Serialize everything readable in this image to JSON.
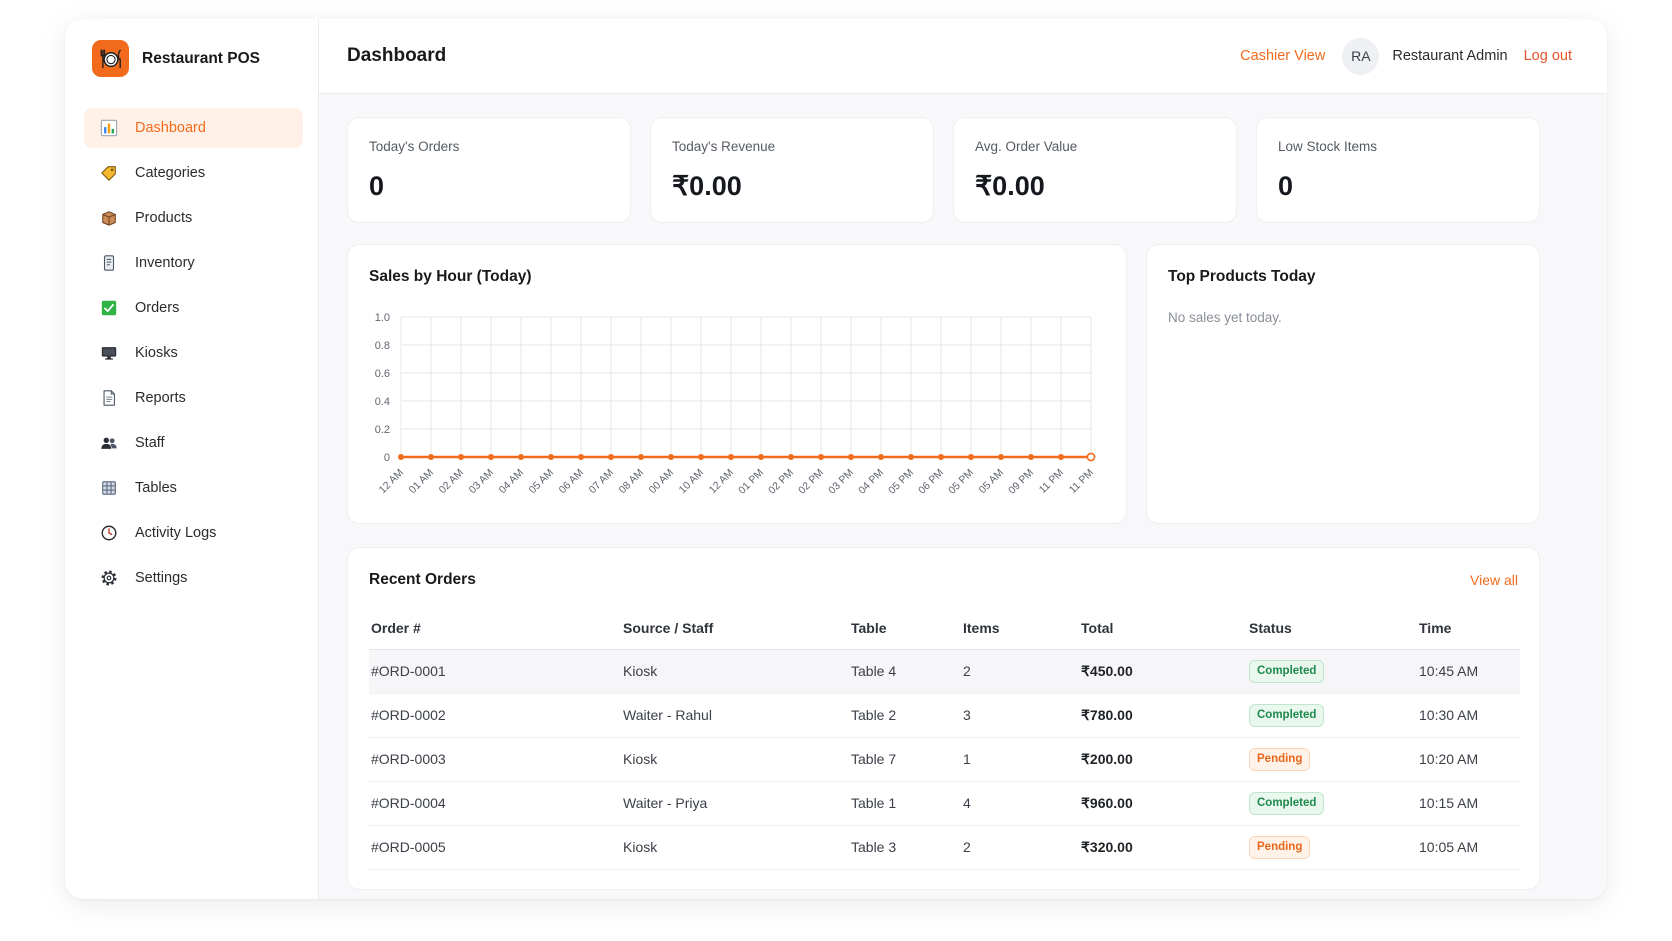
{
  "colors": {
    "accent": "#f26b1d",
    "logout": "#e5532d",
    "completed": "#1e8a4c",
    "pending": "#e8661a"
  },
  "app": {
    "name": "Restaurant POS",
    "logo_icon": "restaurant-logo-icon"
  },
  "sidebar": {
    "items": [
      {
        "label": "Dashboard",
        "icon": "bar-chart-icon",
        "active": true
      },
      {
        "label": "Categories",
        "icon": "tag-icon"
      },
      {
        "label": "Products",
        "icon": "box-icon"
      },
      {
        "label": "Inventory",
        "icon": "clipboard-icon"
      },
      {
        "label": "Orders",
        "icon": "check-box-icon"
      },
      {
        "label": "Kiosks",
        "icon": "monitor-icon"
      },
      {
        "label": "Reports",
        "icon": "document-icon"
      },
      {
        "label": "Staff",
        "icon": "people-icon"
      },
      {
        "label": "Tables",
        "icon": "table-grid-icon"
      },
      {
        "label": "Activity Logs",
        "icon": "clock-icon"
      },
      {
        "label": "Settings",
        "icon": "gear-icon"
      }
    ]
  },
  "header": {
    "title": "Dashboard",
    "cashier_view": "Cashier View",
    "avatar_initials": "RA",
    "user_name": "Restaurant Admin",
    "logout": "Log out"
  },
  "stats": [
    {
      "label": "Today's Orders",
      "value": "0"
    },
    {
      "label": "Today's Revenue",
      "value": "₹0.00"
    },
    {
      "label": "Avg. Order Value",
      "value": "₹0.00"
    },
    {
      "label": "Low Stock Items",
      "value": "0"
    }
  ],
  "chart_data": {
    "type": "line",
    "title": "Sales by Hour (Today)",
    "categories": [
      "12 AM",
      "01 AM",
      "02 AM",
      "03 AM",
      "04 AM",
      "05 AM",
      "06 AM",
      "07 AM",
      "08 AM",
      "00 AM",
      "10 AM",
      "12 AM",
      "01 PM",
      "02 PM",
      "02 PM",
      "03 PM",
      "04 PM",
      "05 PM",
      "06 PM",
      "05 PM",
      "05 AM",
      "09 PM",
      "11 PM",
      "11 PM"
    ],
    "series": [
      {
        "values": [
          0,
          0,
          0,
          0,
          0,
          0,
          0,
          0,
          0,
          0,
          0,
          0,
          0,
          0,
          0,
          0,
          0,
          0,
          0,
          0,
          0,
          0,
          0,
          0
        ],
        "color": "#f26b1d"
      }
    ],
    "ylim": [
      0,
      1
    ],
    "yticks": [
      0,
      0.2,
      0.4,
      0.6,
      0.8,
      1.0
    ],
    "ytick_labels": [
      "0",
      "0.2",
      "0.4",
      "0.6",
      "0.8",
      "1.0"
    ],
    "xlabel": "",
    "ylabel": "",
    "grid": true,
    "legend": "none"
  },
  "top_products": {
    "title": "Top Products Today",
    "empty_message": "No sales yet today."
  },
  "recent_orders": {
    "title": "Recent Orders",
    "view_all": "View all",
    "columns": [
      "Order #",
      "Source / Staff",
      "Table",
      "Items",
      "Total",
      "Status",
      "Time"
    ],
    "rows": [
      {
        "order": "#ORD-0001",
        "source": "Kiosk",
        "table": "Table 4",
        "items": "2",
        "total": "₹450.00",
        "status": "Completed",
        "time": "10:45 AM"
      },
      {
        "order": "#ORD-0002",
        "source": "Waiter - Rahul",
        "table": "Table 2",
        "items": "3",
        "total": "₹780.00",
        "status": "Completed",
        "time": "10:30 AM"
      },
      {
        "order": "#ORD-0003",
        "source": "Kiosk",
        "table": "Table 7",
        "items": "1",
        "total": "₹200.00",
        "status": "Pending",
        "time": "10:20 AM"
      },
      {
        "order": "#ORD-0004",
        "source": "Waiter - Priya",
        "table": "Table 1",
        "items": "4",
        "total": "₹960.00",
        "status": "Completed",
        "time": "10:15 AM"
      },
      {
        "order": "#ORD-0005",
        "source": "Kiosk",
        "table": "Table 3",
        "items": "2",
        "total": "₹320.00",
        "status": "Pending",
        "time": "10:05 AM"
      }
    ]
  }
}
